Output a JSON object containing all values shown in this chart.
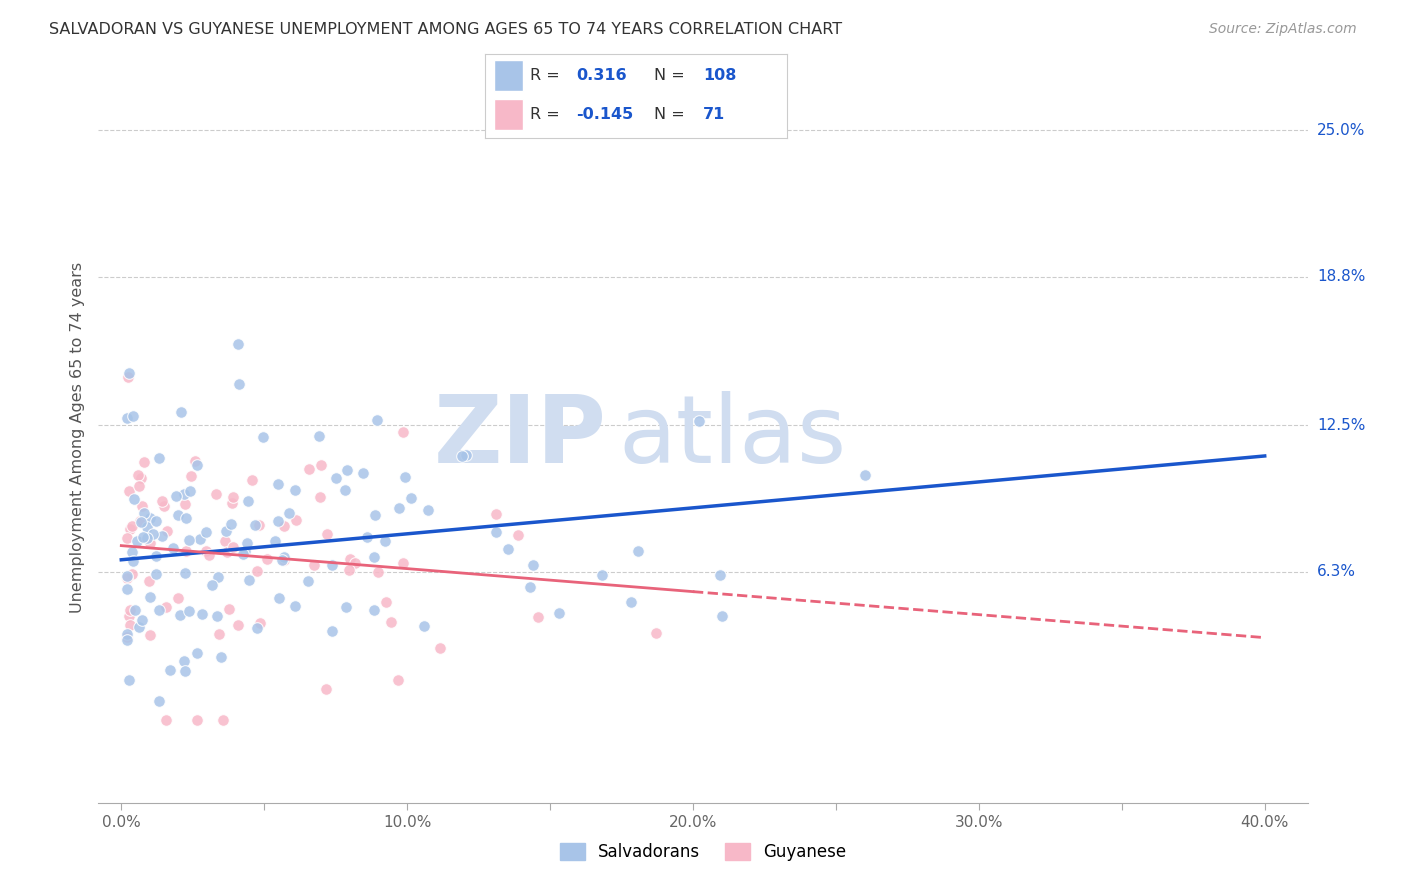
{
  "title": "SALVADORAN VS GUYANESE UNEMPLOYMENT AMONG AGES 65 TO 74 YEARS CORRELATION CHART",
  "source": "Source: ZipAtlas.com",
  "ylabel": "Unemployment Among Ages 65 to 74 years",
  "x_tick_labels": [
    "0.0%",
    "",
    "10.0%",
    "",
    "20.0%",
    "",
    "30.0%",
    "",
    "40.0%"
  ],
  "x_tick_vals": [
    0.0,
    5.0,
    10.0,
    15.0,
    20.0,
    25.0,
    30.0,
    35.0,
    40.0
  ],
  "y_tick_labels": [
    "6.3%",
    "12.5%",
    "18.8%",
    "25.0%"
  ],
  "y_tick_vals": [
    6.3,
    12.5,
    18.8,
    25.0
  ],
  "xlim": [
    -0.8,
    41.5
  ],
  "ylim": [
    -3.5,
    27.5
  ],
  "legend_label_1": "Salvadorans",
  "legend_label_2": "Guyanese",
  "R1": "0.316",
  "N1": "108",
  "R2": "-0.145",
  "N2": "71",
  "dot_color_1": "#a8c4e8",
  "dot_color_2": "#f7b8c8",
  "line_color_1": "#1a56cc",
  "line_color_2": "#e8637a",
  "background_color": "#ffffff",
  "watermark_color": "#d0ddf0",
  "sal_line_x0": 0.0,
  "sal_line_y0": 6.8,
  "sal_line_x1": 40.0,
  "sal_line_y1": 11.2,
  "guy_line_x0": 0.0,
  "guy_line_y0": 7.4,
  "guy_line_solid_x1": 20.0,
  "guy_line_x1": 40.0,
  "guy_line_y1": 3.5
}
